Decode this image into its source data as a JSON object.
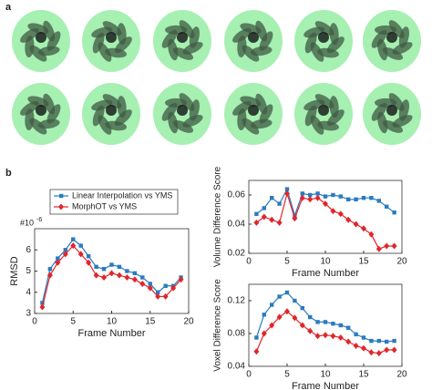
{
  "panel_labels": [
    "a",
    "b"
  ],
  "chart_data": [
    {
      "type": "line",
      "xlabel": "Frame Number",
      "ylabel": "RMSD",
      "exponent_base": "#10",
      "exponent_power": "-6",
      "x": [
        1,
        2,
        3,
        4,
        5,
        6,
        7,
        8,
        9,
        10,
        11,
        12,
        13,
        14,
        15,
        16,
        17,
        18,
        19
      ],
      "xlim": [
        0,
        20
      ],
      "xticks": [
        0,
        5,
        10,
        15,
        20
      ],
      "ylim": [
        3,
        7
      ],
      "yticks": [
        3,
        4,
        5,
        6
      ],
      "legend": "top-left",
      "series": [
        {
          "name": "Linear Interpolation vs YMS",
          "color": "#2a7bc0",
          "marker": "square",
          "values": [
            3.5,
            5.1,
            5.6,
            6.0,
            6.5,
            6.2,
            5.7,
            5.2,
            5.1,
            5.3,
            5.2,
            5.0,
            4.9,
            4.7,
            4.4,
            4.0,
            4.3,
            4.3,
            4.7
          ]
        },
        {
          "name": "MorphOT vs YMS",
          "color": "#e0262b",
          "marker": "diamond",
          "values": [
            3.3,
            4.8,
            5.4,
            5.8,
            6.2,
            5.8,
            5.4,
            4.8,
            4.7,
            4.9,
            4.8,
            4.7,
            4.6,
            4.4,
            4.2,
            3.8,
            3.8,
            4.2,
            4.6
          ]
        }
      ]
    },
    {
      "type": "line",
      "xlabel": "Frame Number",
      "ylabel": "Volume Difference Score",
      "x": [
        1,
        2,
        3,
        4,
        5,
        6,
        7,
        8,
        9,
        10,
        11,
        12,
        13,
        14,
        15,
        16,
        17,
        18,
        19
      ],
      "xlim": [
        0,
        20
      ],
      "xticks": [
        0,
        5,
        10,
        15,
        20
      ],
      "ylim": [
        0.02,
        0.07
      ],
      "yticks": [
        0.02,
        0.04,
        0.06
      ],
      "series": [
        {
          "color": "#2a7bc0",
          "marker": "square",
          "values": [
            0.047,
            0.051,
            0.058,
            0.054,
            0.064,
            0.046,
            0.061,
            0.06,
            0.061,
            0.059,
            0.06,
            0.059,
            0.057,
            0.057,
            0.058,
            0.058,
            0.056,
            0.052,
            0.048
          ]
        },
        {
          "color": "#e0262b",
          "marker": "diamond",
          "values": [
            0.041,
            0.045,
            0.043,
            0.041,
            0.061,
            0.044,
            0.058,
            0.057,
            0.058,
            0.054,
            0.049,
            0.047,
            0.043,
            0.04,
            0.037,
            0.033,
            0.023,
            0.025,
            0.025
          ]
        }
      ]
    },
    {
      "type": "line",
      "xlabel": "Frame Number",
      "ylabel": "Voxel Difference Score",
      "x": [
        1,
        2,
        3,
        4,
        5,
        6,
        7,
        8,
        9,
        10,
        11,
        12,
        13,
        14,
        15,
        16,
        17,
        18,
        19
      ],
      "xlim": [
        0,
        20
      ],
      "xticks": [
        0,
        5,
        10,
        15,
        20
      ],
      "ylim": [
        0.04,
        0.14
      ],
      "yticks": [
        0.04,
        0.08,
        0.12
      ],
      "series": [
        {
          "color": "#2a7bc0",
          "marker": "square",
          "values": [
            0.075,
            0.103,
            0.115,
            0.125,
            0.13,
            0.12,
            0.111,
            0.1,
            0.094,
            0.094,
            0.092,
            0.09,
            0.087,
            0.079,
            0.075,
            0.071,
            0.071,
            0.07,
            0.071
          ]
        },
        {
          "color": "#e0262b",
          "marker": "diamond",
          "values": [
            0.058,
            0.08,
            0.09,
            0.1,
            0.107,
            0.099,
            0.09,
            0.083,
            0.077,
            0.078,
            0.077,
            0.075,
            0.07,
            0.065,
            0.062,
            0.057,
            0.056,
            0.06,
            0.06
          ]
        }
      ]
    }
  ]
}
